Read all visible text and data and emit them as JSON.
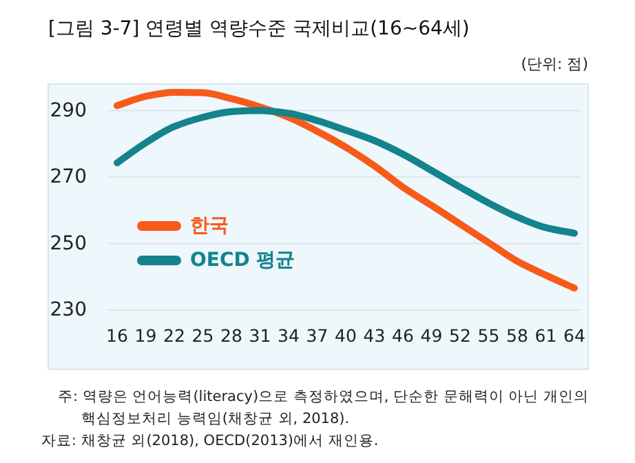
{
  "chart_data": {
    "type": "line",
    "title": "[그림 3-7] 연령별 역량수준 국제비교(16~64세)",
    "ylabel": "(단위: 점)",
    "categories": [
      "16",
      "19",
      "22",
      "25",
      "28",
      "31",
      "34",
      "37",
      "40",
      "43",
      "46",
      "49",
      "52",
      "55",
      "58",
      "61",
      "64"
    ],
    "series": [
      {
        "name": "한국",
        "color": "#f85a1a",
        "values": [
          291.5,
          294.3,
          295.5,
          295.4,
          293.6,
          291.1,
          288,
          283.8,
          279,
          273.4,
          267,
          261.5,
          255.9,
          250.3,
          244.7,
          240.5,
          236.6
        ]
      },
      {
        "name": "OECD 평균",
        "color": "#14838c",
        "values": [
          274.3,
          280.3,
          285.2,
          288,
          289.7,
          290,
          289.2,
          287,
          284.1,
          281,
          276.9,
          272,
          267,
          262.2,
          258,
          254.8,
          253.1
        ]
      }
    ],
    "ylim": [
      230,
      298
    ],
    "yticks": [
      230,
      250,
      270,
      290
    ],
    "grid": "y",
    "legend": "left",
    "marker": "none",
    "line_style": "solid",
    "annotations": [
      "주: 역량은 언어능력(literacy)으로 측정하였으며, 단순한 문해력이 아닌 개인의 핵심정보처리 능력임(채창균 외, 2018).",
      "자료: 채창균 외(2018), OECD(2013)에서 재인용."
    ]
  }
}
